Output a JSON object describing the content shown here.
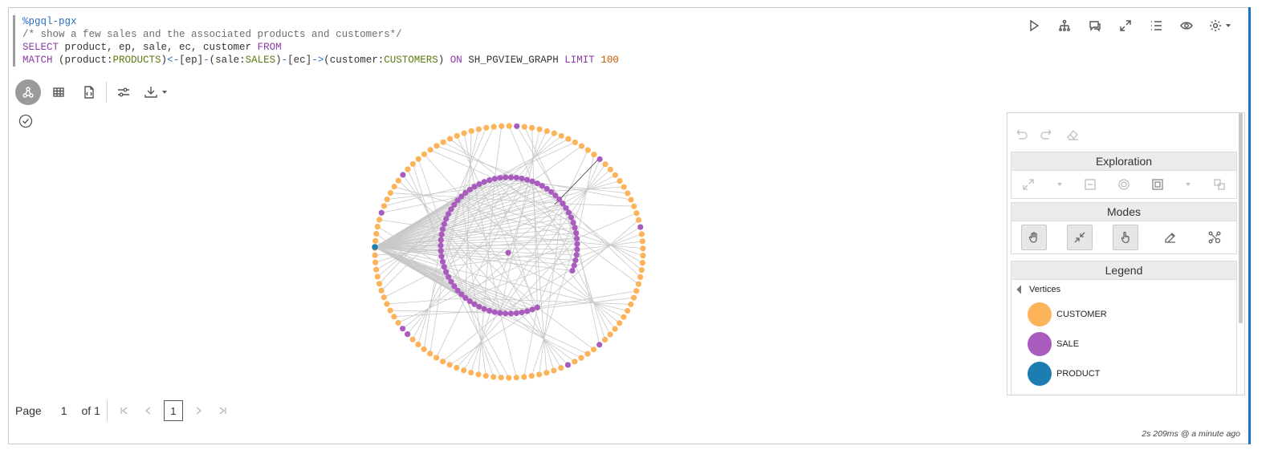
{
  "code": {
    "line1": "%pgql-pgx",
    "line2": "/* show a few sales and the associated products and customers*/",
    "line3_kw1": "SELECT",
    "line3_rest": " product, ep, sale, ec, customer ",
    "line3_kw2": "FROM",
    "line4_kw1": "MATCH",
    "line4_a": " (product:",
    "line4_l1": "PRODUCTS",
    "line4_b": ")",
    "line4_arr1": "<-",
    "line4_c": "[ep]",
    "line4_d": "-",
    "line4_e": "(sale:",
    "line4_l2": "SALES",
    "line4_f": ")",
    "line4_g": "-",
    "line4_h": "[ec]",
    "line4_arr2": "->",
    "line4_i": "(customer:",
    "line4_l3": "CUSTOMERS",
    "line4_j": ") ",
    "line4_kw2": "ON",
    "line4_k": " SH_PGVIEW_GRAPH ",
    "line4_kw3": "LIMIT",
    "line4_sp": " ",
    "line4_num": "100"
  },
  "top_toolbar": [
    "run-icon",
    "graph-hierarchy-icon",
    "comments-icon",
    "expand-icon",
    "list-icon",
    "eye-icon",
    "settings-icon"
  ],
  "panel": {
    "exploration_title": "Exploration",
    "modes_title": "Modes",
    "legend_title": "Legend",
    "vertices_label": "Vertices",
    "legend_items": [
      {
        "label": "CUSTOMER",
        "color": "#fdb35a"
      },
      {
        "label": "SALE",
        "color": "#a95cbd"
      },
      {
        "label": "PRODUCT",
        "color": "#1c7db3"
      }
    ]
  },
  "pager": {
    "page_label": "Page",
    "page_value": "1",
    "of_label": "of 1",
    "current": "1"
  },
  "timing": "2s 209ms @ a minute ago",
  "colors": {
    "customer": "#fdb35a",
    "sale": "#a95cbd",
    "product": "#1c7db3",
    "edge": "#c8c8c8",
    "accent": "#1a73c7"
  }
}
